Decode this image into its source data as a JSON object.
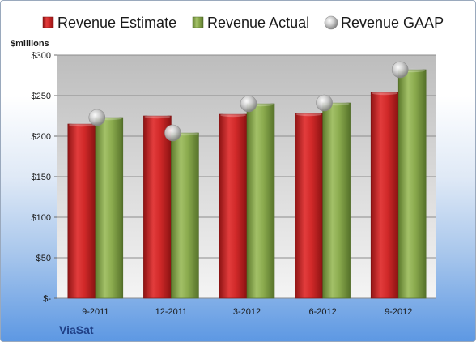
{
  "chart_data": {
    "type": "bar",
    "title": "",
    "unit_label": "$millions",
    "categories": [
      "9-2011",
      "12-2011",
      "3-2012",
      "6-2012",
      "9-2012"
    ],
    "series": [
      {
        "name": "Revenue Estimate",
        "kind": "bar",
        "color": "#d62a2a",
        "values": [
          215,
          225,
          227,
          228,
          254
        ]
      },
      {
        "name": "Revenue Actual",
        "kind": "bar",
        "color": "#8bab4e",
        "values": [
          223,
          204,
          240,
          241,
          282
        ]
      },
      {
        "name": "Revenue GAAP",
        "kind": "marker",
        "color": "#b9b9b9",
        "values": [
          223,
          204,
          240,
          241,
          282
        ]
      }
    ],
    "y_ticks": [
      {
        "value": 0,
        "label": "$-"
      },
      {
        "value": 50,
        "label": "$50"
      },
      {
        "value": 100,
        "label": "$100"
      },
      {
        "value": 150,
        "label": "$150"
      },
      {
        "value": 200,
        "label": "$200"
      },
      {
        "value": 250,
        "label": "$250"
      },
      {
        "value": 300,
        "label": "$300"
      }
    ],
    "ylim": [
      0,
      300
    ],
    "grid": true,
    "legend_position": "top"
  },
  "brand": "ViaSat"
}
